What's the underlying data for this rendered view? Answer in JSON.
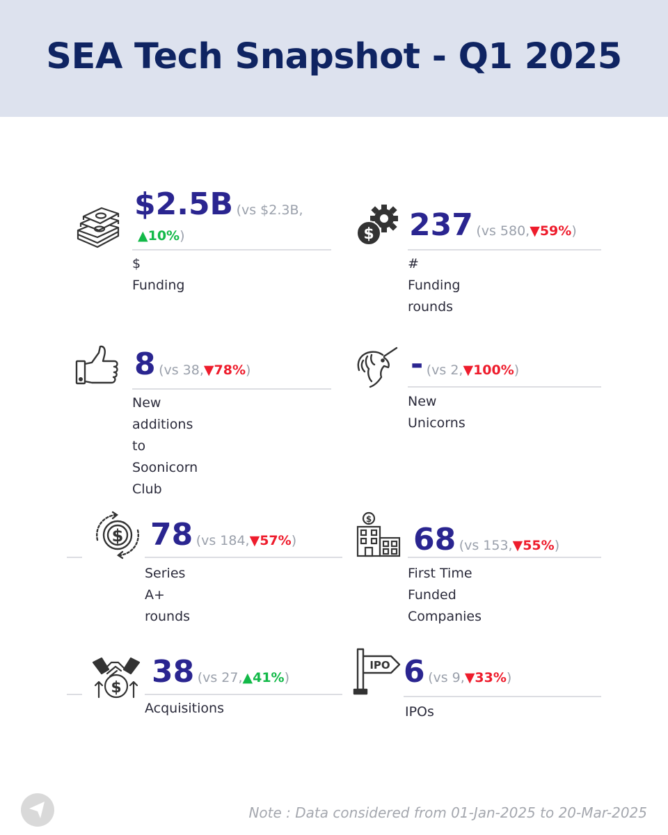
{
  "header": {
    "title": "SEA Tech Snapshot - Q1 2025"
  },
  "colors": {
    "accent": "#2a2590",
    "header_bg": "#dde2ee",
    "up": "#12b948",
    "down": "#ee1c2c",
    "muted": "#9aa0ab"
  },
  "stats": {
    "funding": {
      "icon": "money-stack-icon",
      "value": "$2.5B",
      "vs": "(vs $2.3B,",
      "change": "▲10%",
      "close": ")",
      "label": "$ Funding"
    },
    "rounds": {
      "icon": "dollar-gear-icon",
      "value": "237",
      "vs": "(vs 580,",
      "change": "▼59%",
      "close": ")",
      "label": "# Funding rounds"
    },
    "soonicorn": {
      "icon": "thumbs-up-icon",
      "value": "8",
      "vs": "(vs 38,",
      "change": "▼78%",
      "close": ")",
      "label_line1": "New additions to",
      "label_line2": "Soonicorn Club"
    },
    "unicorns": {
      "icon": "unicorn-icon",
      "value": "-",
      "vs": "(vs 2,",
      "change": "▼100%",
      "close": ")",
      "label": "New Unicorns"
    },
    "series_a": {
      "icon": "dollar-cycle-icon",
      "value": "78",
      "vs": "(vs 184,",
      "change": "▼57%",
      "close": ")",
      "label": "Series A+ rounds"
    },
    "first_time": {
      "icon": "building-dollar-icon",
      "value": "68",
      "vs": "(vs 153,",
      "change": "▼55%",
      "close": ")",
      "label_line1": "First Time Funded",
      "label_line2": "Companies"
    },
    "acquisitions": {
      "icon": "handshake-dollar-icon",
      "value": "38",
      "vs": "(vs 27,",
      "change": "▲41%",
      "close": ")",
      "label": "Acquisitions"
    },
    "ipos": {
      "icon": "ipo-signpost-icon",
      "value": "6",
      "vs": "(vs 9,",
      "change": "▼33%",
      "close": ")",
      "label": "IPOs",
      "sign_text": "IPO"
    }
  },
  "footer": {
    "note": "Note : Data considered from 01-Jan-2025 to 20-Mar-2025",
    "logo": "brand-logo-icon"
  }
}
